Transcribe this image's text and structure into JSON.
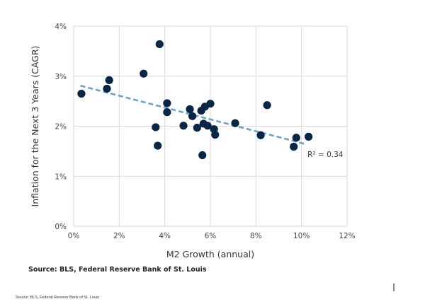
{
  "chart_data": {
    "type": "scatter",
    "title": "",
    "xlabel": "M2 Growth (annual)",
    "ylabel": "Inflation for the Next 3 Years (CAGR)",
    "xlim": [
      0,
      12
    ],
    "ylim": [
      0,
      4
    ],
    "xticks": [
      0,
      2,
      4,
      6,
      8,
      10,
      12
    ],
    "xtick_labels": [
      "0%",
      "2%",
      "4%",
      "6%",
      "8%",
      "10%",
      "12%"
    ],
    "yticks": [
      0,
      1,
      2,
      3,
      4
    ],
    "ytick_labels": [
      "0%",
      "1%",
      "2%",
      "3%",
      "4%"
    ],
    "grid": true,
    "series": [
      {
        "name": "observations",
        "color": "#0b2545",
        "points": [
          [
            0.34,
            2.65
          ],
          [
            1.46,
            2.75
          ],
          [
            1.56,
            2.92
          ],
          [
            3.07,
            3.05
          ],
          [
            3.77,
            3.64
          ],
          [
            4.1,
            2.46
          ],
          [
            4.1,
            2.28
          ],
          [
            3.6,
            1.98
          ],
          [
            3.69,
            1.61
          ],
          [
            4.82,
            2.01
          ],
          [
            5.1,
            2.34
          ],
          [
            5.21,
            2.2
          ],
          [
            5.42,
            1.97
          ],
          [
            5.6,
            2.31
          ],
          [
            5.76,
            2.39
          ],
          [
            6.0,
            2.45
          ],
          [
            5.7,
            2.05
          ],
          [
            5.88,
            2.01
          ],
          [
            6.16,
            1.94
          ],
          [
            6.21,
            1.83
          ],
          [
            5.65,
            1.42
          ],
          [
            7.09,
            2.06
          ],
          [
            8.21,
            1.82
          ],
          [
            8.49,
            2.42
          ],
          [
            9.77,
            1.77
          ],
          [
            9.66,
            1.59
          ],
          [
            10.31,
            1.79
          ]
        ]
      }
    ],
    "trendline": {
      "color": "#6ba3c8",
      "style": "dashed",
      "start": [
        0.3,
        2.81
      ],
      "end": [
        10.2,
        1.64
      ],
      "label": "R² = 0.34"
    },
    "source": "Source:  BLS, Federal Reserve Bank of St. Louis"
  },
  "footer": {
    "small_source": "Source:  BLS, Federal Reserve Bank of St. Louis"
  },
  "colors": {
    "gridline": "#d9d9d9",
    "point": "#0b2545",
    "trend": "#6ba3c8"
  }
}
